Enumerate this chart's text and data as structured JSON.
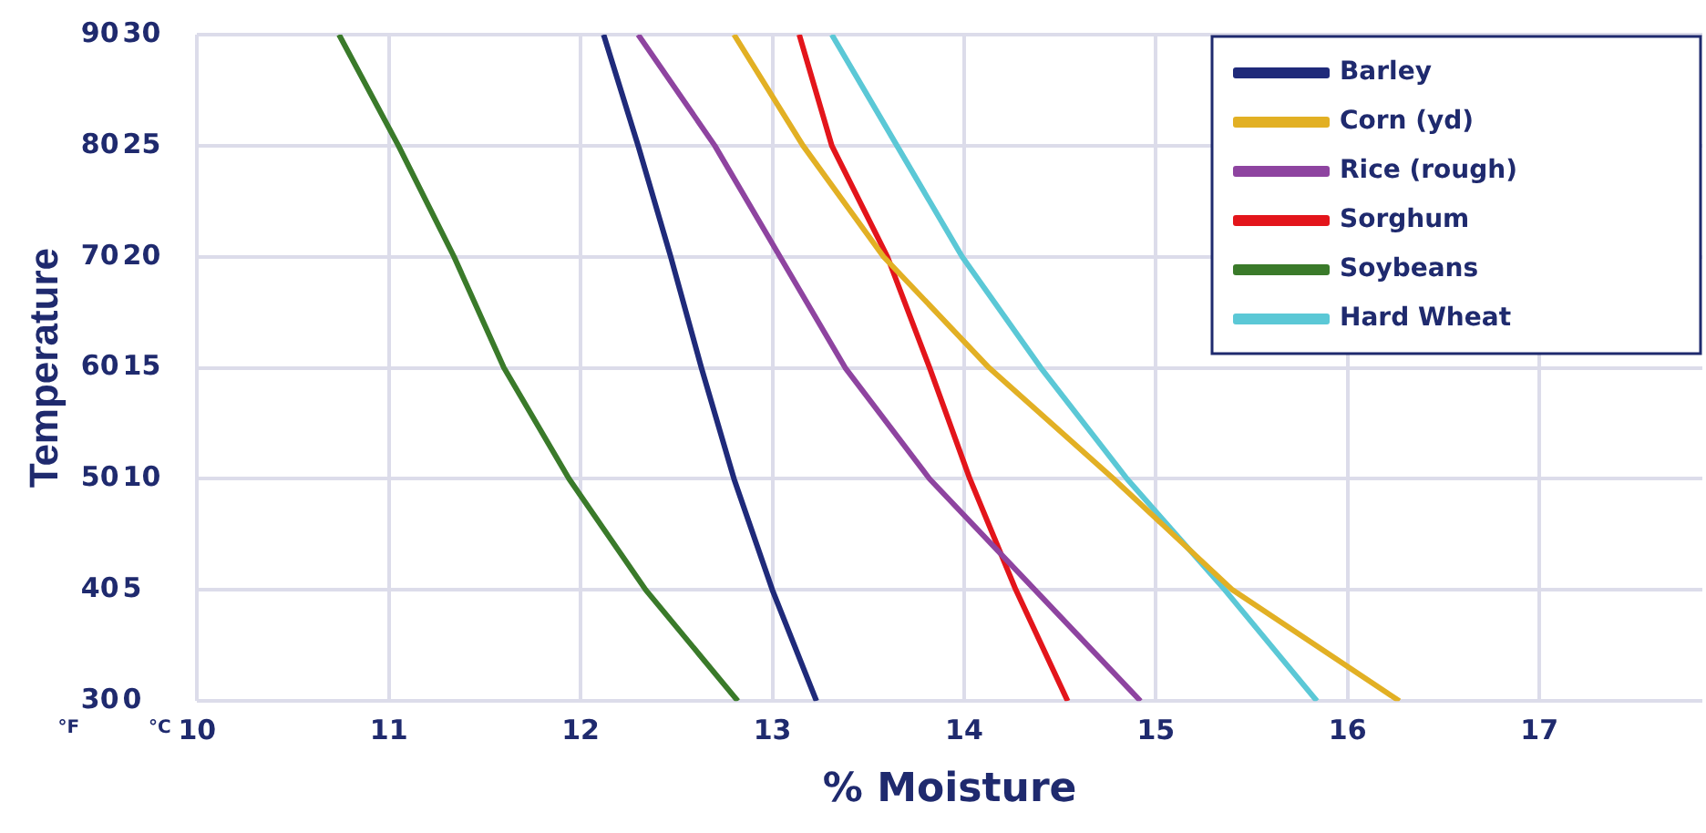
{
  "chart_data": {
    "type": "line",
    "xlabel": "% Moisture",
    "ylabel": "Temperature",
    "xlim": [
      10,
      17.85
    ],
    "xticks": [
      10,
      11,
      12,
      13,
      14,
      15,
      16,
      17
    ],
    "ylim": [
      30,
      90
    ],
    "yticks": [
      30,
      40,
      50,
      60,
      70,
      80,
      90
    ],
    "y2lim": [
      0,
      30
    ],
    "y2ticks": [
      0,
      5,
      10,
      15,
      20,
      25,
      30
    ],
    "annotations": [
      "°F",
      "°C"
    ],
    "grid": true,
    "legend": "top right",
    "series": [
      {
        "name": "Barley",
        "color": "#1f2a7a",
        "x": [
          13.23,
          13.0,
          12.8,
          12.63,
          12.47,
          12.3,
          12.12
        ],
        "values": [
          30,
          40,
          50,
          60,
          70,
          80,
          90
        ]
      },
      {
        "name": "Corn (yd)",
        "color": "#e2b024",
        "x": [
          16.27,
          15.4,
          14.78,
          14.13,
          13.58,
          13.16,
          12.8
        ],
        "values": [
          30,
          40,
          50,
          60,
          70,
          80,
          90
        ]
      },
      {
        "name": "Rice (rough)",
        "color": "#8e44a0",
        "x": [
          14.92,
          14.37,
          13.82,
          13.38,
          13.04,
          12.7,
          12.3
        ],
        "values": [
          30,
          40,
          50,
          60,
          70,
          80,
          90
        ]
      },
      {
        "name": "Sorghum",
        "color": "#e3151b",
        "x": [
          14.54,
          14.27,
          14.03,
          13.82,
          13.6,
          13.31,
          13.14
        ],
        "values": [
          30,
          40,
          50,
          60,
          70,
          80,
          90
        ]
      },
      {
        "name": "Soybeans",
        "color": "#3a7a2a",
        "x": [
          12.82,
          12.34,
          11.94,
          11.6,
          11.34,
          11.05,
          10.74
        ],
        "values": [
          30,
          40,
          50,
          60,
          70,
          80,
          90
        ]
      },
      {
        "name": "Hard Wheat",
        "color": "#5bc8d6",
        "x": [
          15.84,
          15.36,
          14.85,
          14.4,
          13.99,
          13.65,
          13.31
        ],
        "values": [
          30,
          40,
          50,
          60,
          70,
          80,
          90
        ]
      }
    ]
  }
}
